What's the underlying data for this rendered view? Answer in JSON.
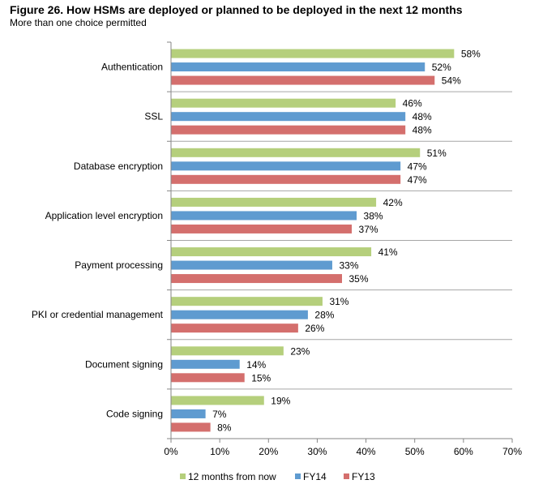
{
  "header": {
    "title": "Figure 26. How HSMs are deployed or planned to be deployed in the next 12 months",
    "subtitle": "More than one choice permitted"
  },
  "chart_data": {
    "type": "bar",
    "orientation": "horizontal",
    "title": "Figure 26. How HSMs are deployed or planned to be deployed in the next 12 months",
    "subtitle": "More than one choice permitted",
    "categories": [
      "Authentication",
      "SSL",
      "Database encryption",
      "Application level encryption",
      "Payment processing",
      "PKI or credential management",
      "Document signing",
      "Code signing"
    ],
    "series": [
      {
        "name": "12 months from now",
        "color": "#b5cf7c",
        "values": [
          58,
          46,
          51,
          42,
          41,
          31,
          23,
          19
        ]
      },
      {
        "name": "FY14",
        "color": "#5f9bd0",
        "values": [
          52,
          48,
          47,
          38,
          33,
          28,
          14,
          7
        ]
      },
      {
        "name": "FY13",
        "color": "#d46f6d",
        "values": [
          54,
          48,
          47,
          37,
          35,
          26,
          15,
          8
        ]
      }
    ],
    "value_suffix": "%",
    "xlim": [
      0,
      70
    ],
    "xticks": [
      0,
      10,
      20,
      30,
      40,
      50,
      60,
      70
    ],
    "xtick_labels": [
      "0%",
      "10%",
      "20%",
      "30%",
      "40%",
      "50%",
      "60%",
      "70%"
    ],
    "xlabel": "",
    "ylabel": "",
    "grid": "horizontal separators between categories",
    "legend_position": "bottom"
  }
}
